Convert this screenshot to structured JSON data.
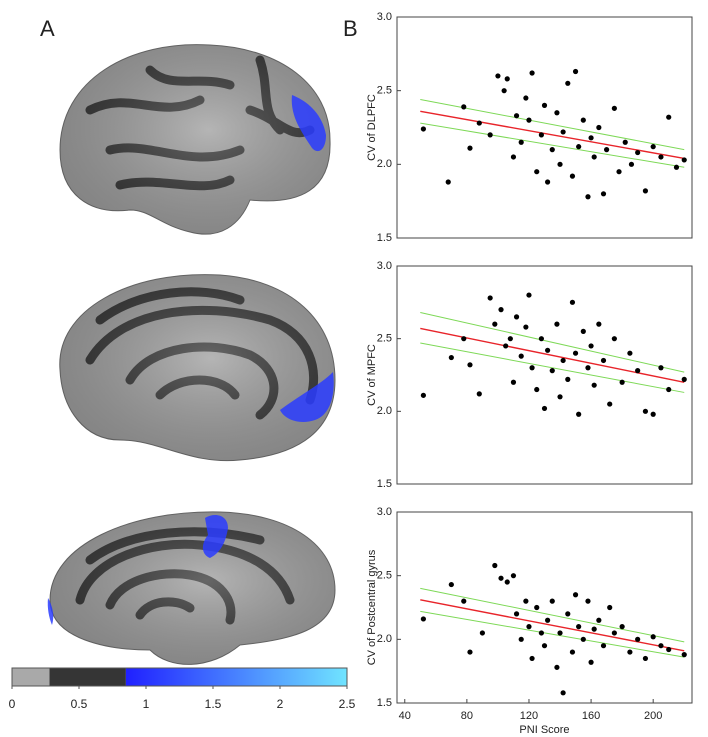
{
  "panel_labels": [
    "A",
    "B"
  ],
  "colorbar": {
    "xlim": [
      0,
      2.5
    ],
    "xticks": [
      0,
      0.5,
      1,
      1.5,
      2,
      2.5
    ],
    "segments": [
      {
        "from": 0,
        "to": 0.28,
        "colors": [
          "#a9a9a9",
          "#a9a9a9"
        ]
      },
      {
        "from": 0.28,
        "to": 0.85,
        "colors": [
          "#353535",
          "#353535"
        ]
      },
      {
        "from": 0.85,
        "to": 2.5,
        "colors": [
          "#2020ff",
          "#70e4ff"
        ]
      }
    ]
  },
  "chart_data": [
    {
      "type": "scatter",
      "ylabel": "CV of DLPFC",
      "xlim": [
        35,
        225
      ],
      "ylim": [
        1.5,
        3.0
      ],
      "yticks": [
        1.5,
        {
          "value": 2,
          "label": "2.0"
        },
        2.5,
        {
          "value": 3,
          "label": "3.0"
        }
      ],
      "color": "#000000",
      "x": [
        52,
        68,
        78,
        82,
        88,
        95,
        100,
        104,
        106,
        110,
        112,
        115,
        118,
        120,
        122,
        125,
        128,
        130,
        132,
        135,
        138,
        140,
        142,
        145,
        148,
        150,
        152,
        155,
        158,
        160,
        162,
        165,
        168,
        170,
        175,
        178,
        182,
        186,
        190,
        195,
        200,
        205,
        210,
        215,
        220
      ],
      "values": [
        2.24,
        1.88,
        2.39,
        2.11,
        2.28,
        2.2,
        2.6,
        2.5,
        2.58,
        2.05,
        2.33,
        2.15,
        2.45,
        2.3,
        2.62,
        1.95,
        2.2,
        2.4,
        1.88,
        2.1,
        2.35,
        2.0,
        2.22,
        2.55,
        1.92,
        2.63,
        2.12,
        2.3,
        1.78,
        2.18,
        2.05,
        2.25,
        1.8,
        2.1,
        2.38,
        1.95,
        2.15,
        2.0,
        2.08,
        1.82,
        2.12,
        2.05,
        2.32,
        1.98,
        2.03
      ],
      "fit": {
        "color": "#e8242a",
        "x": [
          50,
          220
        ],
        "values": [
          2.36,
          2.04
        ]
      },
      "ci_upper": {
        "color": "#7ed957",
        "x": [
          50,
          220
        ],
        "values": [
          2.44,
          2.1
        ]
      },
      "ci_lower": {
        "color": "#7ed957",
        "x": [
          50,
          220
        ],
        "values": [
          2.28,
          1.98
        ]
      }
    },
    {
      "type": "scatter",
      "ylabel": "CV of MPFC",
      "xlim": [
        35,
        225
      ],
      "ylim": [
        1.5,
        3.0
      ],
      "yticks": [
        1.5,
        {
          "value": 2,
          "label": "2.0"
        },
        2.5,
        {
          "value": 3,
          "label": "3.0"
        }
      ],
      "color": "#000000",
      "x": [
        52,
        70,
        78,
        82,
        88,
        95,
        98,
        102,
        105,
        108,
        110,
        112,
        115,
        118,
        120,
        122,
        125,
        128,
        130,
        132,
        135,
        138,
        140,
        142,
        145,
        148,
        150,
        152,
        155,
        158,
        160,
        162,
        165,
        168,
        172,
        175,
        180,
        185,
        190,
        195,
        200,
        205,
        210,
        220
      ],
      "values": [
        2.11,
        2.37,
        2.5,
        2.32,
        2.12,
        2.78,
        2.6,
        2.7,
        2.45,
        2.5,
        2.2,
        2.65,
        2.38,
        2.58,
        2.8,
        2.3,
        2.15,
        2.5,
        2.02,
        2.42,
        2.28,
        2.6,
        2.1,
        2.35,
        2.22,
        2.75,
        2.4,
        1.98,
        2.55,
        2.3,
        2.45,
        2.18,
        2.6,
        2.35,
        2.05,
        2.5,
        2.2,
        2.4,
        2.28,
        2.0,
        1.98,
        2.3,
        2.15,
        2.22
      ],
      "fit": {
        "color": "#e8242a",
        "x": [
          50,
          220
        ],
        "values": [
          2.57,
          2.2
        ]
      },
      "ci_upper": {
        "color": "#7ed957",
        "x": [
          50,
          220
        ],
        "values": [
          2.68,
          2.27
        ]
      },
      "ci_lower": {
        "color": "#7ed957",
        "x": [
          50,
          220
        ],
        "values": [
          2.47,
          2.13
        ]
      }
    },
    {
      "type": "scatter",
      "ylabel": "CV of Postcentral gyrus",
      "xlabel": "PNI Score",
      "xlim": [
        35,
        225
      ],
      "ylim": [
        1.5,
        3.0
      ],
      "xticks": [
        40,
        80,
        120,
        160,
        200
      ],
      "yticks": [
        1.5,
        {
          "value": 2,
          "label": "2.0"
        },
        2.5,
        {
          "value": 3,
          "label": "3.0"
        }
      ],
      "color": "#000000",
      "x": [
        52,
        70,
        78,
        82,
        90,
        98,
        102,
        106,
        110,
        112,
        115,
        118,
        120,
        122,
        125,
        128,
        130,
        132,
        135,
        138,
        140,
        142,
        145,
        148,
        150,
        152,
        155,
        158,
        160,
        162,
        165,
        168,
        172,
        175,
        180,
        185,
        190,
        195,
        200,
        205,
        210,
        220
      ],
      "values": [
        2.16,
        2.43,
        2.3,
        1.9,
        2.05,
        2.58,
        2.48,
        2.45,
        2.5,
        2.2,
        2.0,
        2.3,
        2.1,
        1.85,
        2.25,
        2.05,
        1.95,
        2.15,
        2.3,
        1.78,
        2.05,
        1.58,
        2.2,
        1.9,
        2.35,
        2.1,
        2.0,
        2.3,
        1.82,
        2.08,
        2.15,
        1.95,
        2.25,
        2.05,
        2.1,
        1.9,
        2.0,
        1.85,
        2.02,
        1.95,
        1.92,
        1.88
      ],
      "fit": {
        "color": "#e8242a",
        "x": [
          50,
          220
        ],
        "values": [
          2.31,
          1.91
        ]
      },
      "ci_upper": {
        "color": "#7ed957",
        "x": [
          50,
          220
        ],
        "values": [
          2.4,
          1.98
        ]
      },
      "ci_lower": {
        "color": "#7ed957",
        "x": [
          50,
          220
        ],
        "values": [
          2.22,
          1.86
        ]
      }
    }
  ]
}
